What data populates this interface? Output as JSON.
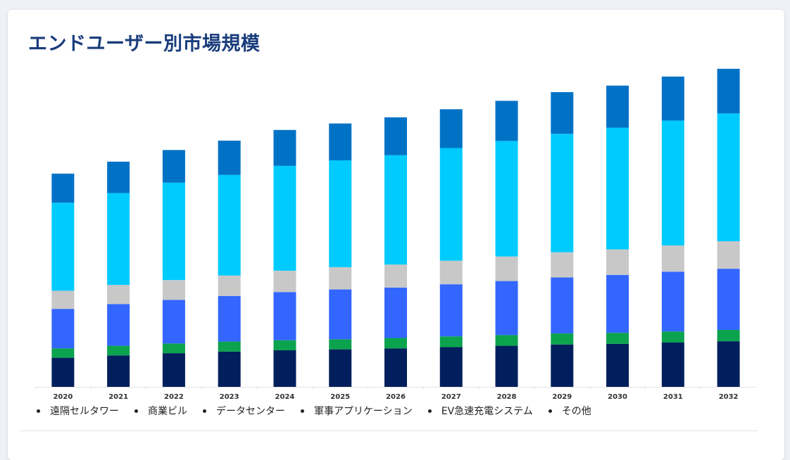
{
  "page": {
    "title": "エンドユーザー別市場規模"
  },
  "chart_data": {
    "type": "bar",
    "stacked": true,
    "categories": [
      "2020",
      "2021",
      "2022",
      "2023",
      "2024",
      "2025",
      "2026",
      "2027",
      "2028",
      "2029",
      "2030",
      "2031",
      "2032"
    ],
    "series": [
      {
        "name": "遠隔セルタワー",
        "color": "#001f5c",
        "values": [
          9.0,
          9.7,
          10.4,
          10.9,
          11.3,
          11.6,
          11.9,
          12.3,
          12.7,
          13.1,
          13.3,
          13.7,
          14.1
        ]
      },
      {
        "name": "商業ビル",
        "color": "#0ba34e",
        "values": [
          2.9,
          3.0,
          3.0,
          3.1,
          3.1,
          3.1,
          3.2,
          3.3,
          3.3,
          3.4,
          3.4,
          3.4,
          3.5
        ]
      },
      {
        "name": "データセンター",
        "color": "#3366ff",
        "values": [
          12.2,
          12.9,
          13.5,
          14.1,
          14.9,
          15.4,
          15.6,
          16.1,
          16.7,
          17.3,
          17.9,
          18.5,
          18.9
        ]
      },
      {
        "name": "軍事アプリケーション",
        "color": "#c8c8c8",
        "values": [
          5.6,
          5.9,
          6.1,
          6.3,
          6.6,
          6.9,
          7.1,
          7.3,
          7.6,
          7.8,
          7.9,
          8.1,
          8.5
        ]
      },
      {
        "name": "EV急速充電システム",
        "color": "#00cbff",
        "values": [
          27.2,
          28.4,
          30.1,
          31.1,
          32.4,
          33.0,
          33.8,
          34.8,
          35.7,
          36.6,
          37.6,
          38.6,
          39.5
        ]
      },
      {
        "name": "その他",
        "color": "#0072c6",
        "values": [
          9.0,
          9.7,
          10.1,
          10.6,
          11.1,
          11.4,
          11.7,
          12.0,
          12.4,
          12.9,
          13.0,
          13.6,
          13.8
        ]
      }
    ],
    "ylim": [
      0,
      100
    ],
    "grid": false,
    "legend_position": "bottom"
  }
}
